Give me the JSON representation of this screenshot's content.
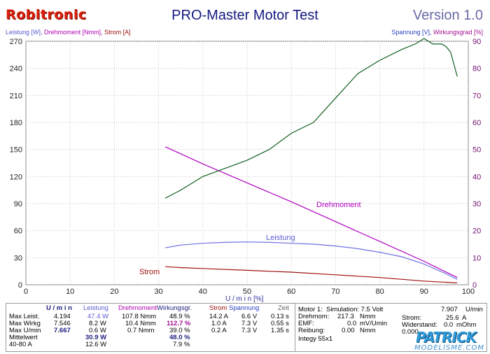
{
  "header": {
    "brand": "Robitronic",
    "title": "PRO-Master Motor Test",
    "version": "Version 1.0"
  },
  "axis_titles": {
    "left": {
      "leistung": "Leistung [W],",
      "drehmoment": "Drehmoment [Nmm],",
      "strom": "Strom [A]"
    },
    "right": {
      "spannung": "Spannung [V],",
      "wirkungsgrad": "Wirkungsgrad [%]"
    }
  },
  "chart_data": {
    "type": "line",
    "xlabel": "U / m i n [%]",
    "xlim": [
      0,
      100
    ],
    "x_ticks": [
      "0",
      "10",
      "20",
      "30",
      "40",
      "50",
      "60",
      "70",
      "80",
      "90",
      "100"
    ],
    "ylim_left": [
      0,
      270
    ],
    "y_ticks_left": [
      "0",
      "30",
      "60",
      "90",
      "120",
      "150",
      "180",
      "210",
      "240",
      "270"
    ],
    "ylim_right": [
      0,
      90
    ],
    "y_ticks_right": [
      "0",
      "10",
      "20",
      "30",
      "40",
      "50",
      "60",
      "70",
      "80",
      "90"
    ],
    "grid": true,
    "series": [
      {
        "name": "Drehmoment",
        "axis": "left",
        "color": "#b000c0",
        "x": [
          31.5,
          40,
          50,
          60,
          70,
          80,
          90,
          97.5
        ],
        "y": [
          153,
          134,
          113,
          92,
          70,
          48,
          26,
          8
        ]
      },
      {
        "name": "Leistung",
        "axis": "left",
        "color": "#7070e0",
        "x": [
          31.5,
          35,
          40,
          45,
          50,
          55,
          60,
          65,
          70,
          75,
          80,
          85,
          90,
          95,
          97.5
        ],
        "y": [
          41,
          44,
          46,
          47,
          47.5,
          47,
          46,
          45,
          43,
          40,
          36,
          31,
          23,
          12,
          6
        ]
      },
      {
        "name": "Strom",
        "axis": "left",
        "color": "#a01010",
        "x": [
          31.5,
          35,
          40,
          50,
          60,
          70,
          80,
          90,
          97.5
        ],
        "y": [
          20,
          19,
          18,
          16,
          14,
          11,
          8,
          4,
          2
        ]
      },
      {
        "name": "Wirkungsgrad",
        "axis": "right",
        "color": "#106020",
        "x": [
          31.5,
          35,
          40,
          45,
          50,
          55,
          60,
          65,
          70,
          75,
          80,
          85,
          88,
          90,
          92,
          94,
          95,
          96,
          97.5
        ],
        "y": [
          32,
          35,
          40,
          43,
          46,
          50,
          56,
          60,
          69,
          78,
          83,
          87,
          89,
          91,
          89,
          89,
          88,
          86,
          77
        ]
      }
    ],
    "annotations": {
      "drehmoment": "Drehmoment",
      "leistung": "Leistung",
      "strom": "Strom"
    }
  },
  "table": {
    "headers": {
      "umin": "U / m i n",
      "leistung": "Leistung",
      "drehmoment": "Drehmoment",
      "wirkungsgrad": "Wirkungsgr.",
      "strom": "Strom",
      "spannung": "Spannung",
      "zeit": "Zeit"
    },
    "rows": [
      {
        "label": "Max Leist.",
        "umin": "4.194",
        "leistung": "47.4 W",
        "drehmoment": "107.8 Nmm",
        "wirkungsgrad": "48.9 %",
        "strom": "14.2 A",
        "spannung": "6.6 V",
        "zeit": "0.13 s"
      },
      {
        "label": "Max Wirkg",
        "umin": "7.546",
        "leistung": "8.2 W",
        "drehmoment": "10.4 Nmm",
        "wirkungsgrad": "112.7 %",
        "strom": "1.0 A",
        "spannung": "7.3 V",
        "zeit": "0.55 s"
      },
      {
        "label": "Max U/min",
        "umin": "7.667",
        "leistung": "0.6 W",
        "drehmoment": "0.7 Nmm",
        "wirkungsgrad": "39.0 %",
        "strom": "0.2 A",
        "spannung": "7.3 V",
        "zeit": "1.35 s"
      },
      {
        "label": "Mittelwert",
        "umin": "",
        "leistung": "30.9 W",
        "drehmoment": "",
        "wirkungsgrad": "48.0 %",
        "strom": "",
        "spannung": "",
        "zeit": ""
      },
      {
        "label": "40-80 A",
        "umin": "",
        "leistung": "12.6 W",
        "drehmoment": "",
        "wirkungsgrad": "7.9 %",
        "strom": "",
        "spannung": "",
        "zeit": ""
      }
    ]
  },
  "motor_info": {
    "line1_label": "Motor 1:",
    "line1_text": "Simulation: 7.5 Volt",
    "line1_value": "7.907",
    "line1_unit": "U/min",
    "drehmoment_label": "Drehmom:",
    "drehmoment_value": "217.3",
    "drehmoment_unit": "Nmm",
    "strom_label": "Strom:",
    "strom_value": "25.6",
    "strom_unit": "A",
    "emf_label": "EMF:",
    "emf_value": "0.0",
    "emf_unit": "mV/Umin",
    "widerstand_label": "Widerstand:",
    "widerstand_value": "0.0",
    "widerstand_unit": "mOhm",
    "reibung_label": "Reibung:",
    "reibung_value": "0.00",
    "reibung_unit": "Nmm",
    "reibung_extra": "0.000",
    "integ_text": "Integy 55x1"
  },
  "watermark": {
    "top": "PATRICK",
    "bottom": "MODELISME.COM"
  }
}
